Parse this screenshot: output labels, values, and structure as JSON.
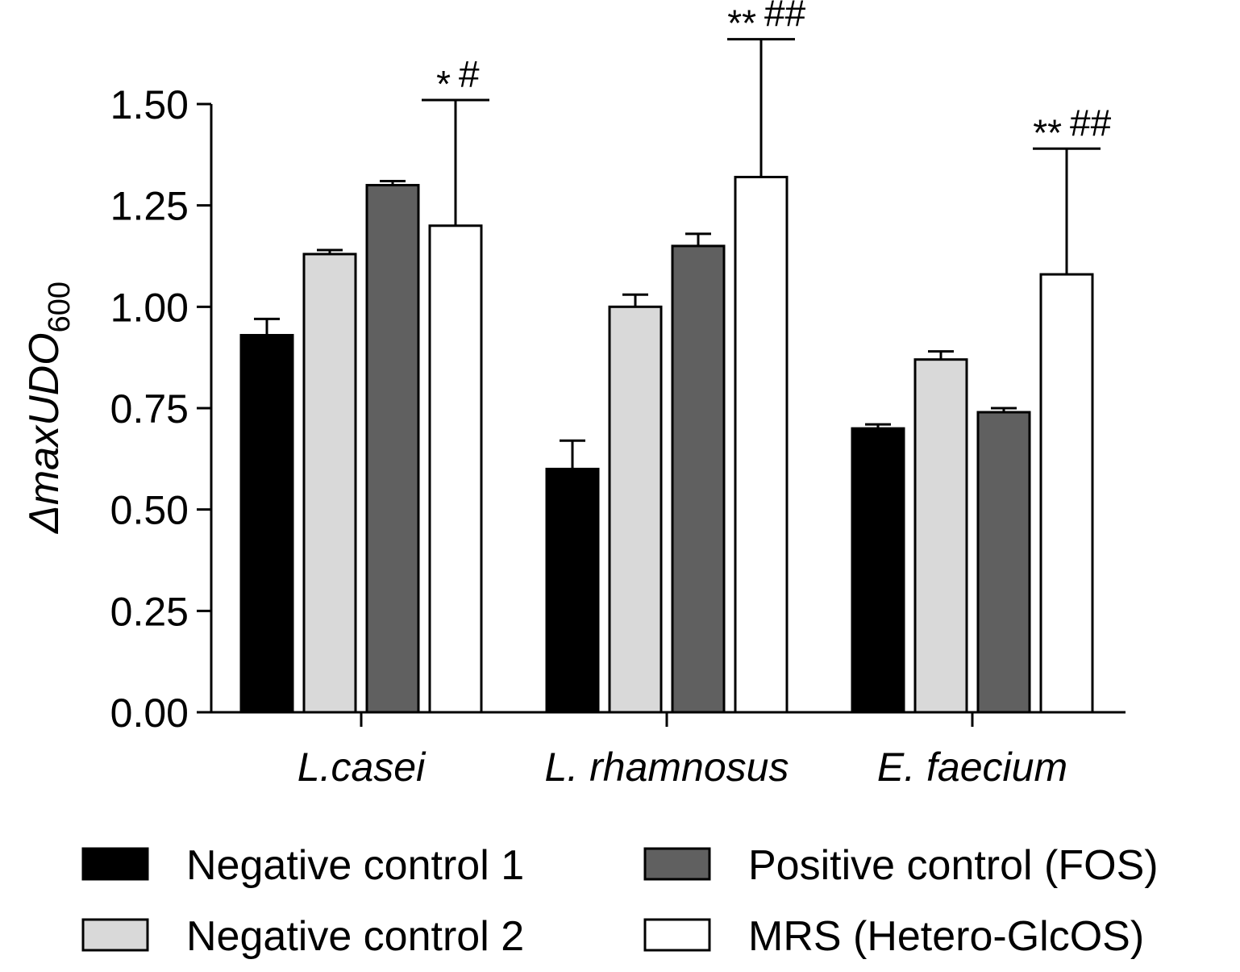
{
  "chart_data": {
    "type": "bar",
    "title": "",
    "xlabel": "",
    "ylabel": "ΔmaxUDO",
    "ylabel_subscript": "600",
    "ylim": [
      0,
      1.5
    ],
    "yticks": [
      0.0,
      0.25,
      0.5,
      0.75,
      1.0,
      1.25,
      1.5
    ],
    "ytick_labels": [
      "0.00",
      "0.25",
      "0.50",
      "0.75",
      "1.00",
      "1.25",
      "1.50"
    ],
    "categories": [
      "L.casei",
      "L. rhamnosus",
      "E. faecium"
    ],
    "series": [
      {
        "name": "Negative control 1",
        "color": "#000000",
        "values": [
          0.93,
          0.6,
          0.7
        ],
        "errors": [
          0.04,
          0.07,
          0.01
        ]
      },
      {
        "name": "Negative control 2",
        "color": "#d9d9d9",
        "values": [
          1.13,
          1.0,
          0.87
        ],
        "errors": [
          0.01,
          0.03,
          0.02
        ]
      },
      {
        "name": "Positive control (FOS)",
        "color": "#606060",
        "values": [
          1.3,
          1.15,
          0.74
        ],
        "errors": [
          0.01,
          0.03,
          0.01
        ]
      },
      {
        "name": "MRS (Hetero-GlcOS)",
        "color": "#ffffff",
        "values": [
          1.2,
          1.32,
          1.08
        ],
        "errors": [
          0.31,
          0.34,
          0.31
        ]
      }
    ],
    "annotations": [
      {
        "category": "L.casei",
        "series": "MRS (Hetero-GlcOS)",
        "stars": "*",
        "hashes": "#"
      },
      {
        "category": "L. rhamnosus",
        "series": "MRS (Hetero-GlcOS)",
        "stars": "**",
        "hashes": "##"
      },
      {
        "category": "E. faecium",
        "series": "MRS (Hetero-GlcOS)",
        "stars": "**",
        "hashes": "##"
      }
    ],
    "legend": {
      "position": "bottom",
      "columns": 2,
      "entries": [
        "Negative control 1",
        "Negative control 2",
        "Positive control (FOS)",
        "MRS (Hetero-GlcOS)"
      ]
    }
  }
}
